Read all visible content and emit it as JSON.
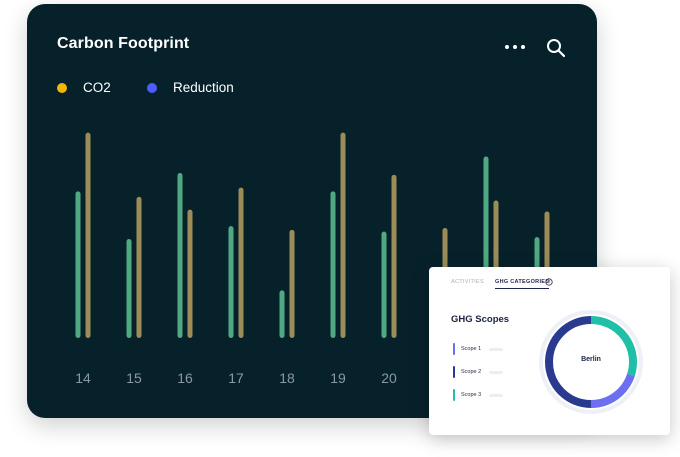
{
  "header": {
    "title": "Carbon Footprint",
    "more_icon": "more-dots-icon",
    "search_icon": "search-icon"
  },
  "legend": [
    {
      "label": "CO2",
      "color": "#f2b705"
    },
    {
      "label": "Reduction",
      "color": "#4f5bff"
    }
  ],
  "chart_data": {
    "type": "bar",
    "title": "Carbon Footprint",
    "categories": [
      "14",
      "15",
      "16",
      "17",
      "18",
      "19",
      "20",
      "",
      "",
      ""
    ],
    "series": [
      {
        "name": "Reduction",
        "color": "#4faa83",
        "values": [
          80,
          54,
          90,
          61,
          26,
          80,
          58,
          38,
          99,
          55
        ]
      },
      {
        "name": "CO2",
        "color": "#9c8d58",
        "values": [
          112,
          77,
          70,
          82,
          59,
          112,
          89,
          60,
          75,
          69
        ]
      }
    ],
    "ylim": [
      0,
      120
    ],
    "grid": false,
    "legend_position": "top-left"
  },
  "ghg_panel": {
    "tabs": [
      {
        "label": "Activities",
        "active": false
      },
      {
        "label": "GHG Categories",
        "active": true
      }
    ],
    "info_icon": "info-icon",
    "title": "GHG Scopes",
    "scopes": [
      {
        "label": "Scope 1",
        "color": "#6b6ff0"
      },
      {
        "label": "Scope 2",
        "color": "#2a3a8f"
      },
      {
        "label": "Scope 3",
        "color": "#1fbfa8"
      }
    ],
    "donut": {
      "center_label": "Berlin",
      "segments": [
        {
          "name": "Scope 3",
          "value": 30,
          "color": "#1fbfa8"
        },
        {
          "name": "Scope 1",
          "value": 20,
          "color": "#6b6ff0"
        },
        {
          "name": "Scope 2",
          "value": 50,
          "color": "#2a3a8f"
        }
      ]
    }
  }
}
